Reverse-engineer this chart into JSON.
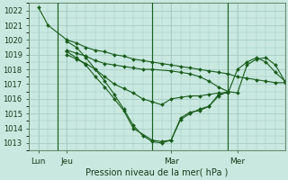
{
  "bg_color": "#c8e8e0",
  "grid_color": "#a0c8c0",
  "line_color": "#1a5c1a",
  "marker_color": "#1a5c1a",
  "xlabel": "Pression niveau de la mer( hPa )",
  "ylim": [
    1012.5,
    1022.5
  ],
  "yticks": [
    1013,
    1014,
    1015,
    1016,
    1017,
    1018,
    1019,
    1020,
    1021,
    1022
  ],
  "xtick_labels": [
    "Lun",
    "Jeu",
    "Mar",
    "Mer"
  ],
  "xtick_positions": [
    0.5,
    2.0,
    7.5,
    11.0
  ],
  "xlim": [
    0,
    13.5
  ],
  "vlines_x": [
    1.5,
    6.5,
    10.5
  ],
  "series": [
    {
      "x": [
        0.5,
        1.0,
        2.0,
        2.5,
        3.0,
        3.5,
        4.0,
        4.5,
        5.0,
        5.5,
        6.0,
        6.5,
        7.0,
        7.5,
        8.0,
        8.5,
        9.0,
        9.5,
        10.0,
        10.5,
        11.0,
        11.5,
        12.0,
        12.5,
        13.0,
        13.5
      ],
      "y": [
        1022.2,
        1021.0,
        1020.0,
        1019.8,
        1019.5,
        1019.3,
        1019.2,
        1019.0,
        1018.9,
        1018.7,
        1018.6,
        1018.5,
        1018.4,
        1018.3,
        1018.2,
        1018.1,
        1018.0,
        1017.9,
        1017.8,
        1017.7,
        1017.5,
        1017.4,
        1017.3,
        1017.2,
        1017.1,
        1017.1
      ]
    },
    {
      "x": [
        2.0,
        2.5,
        3.0,
        3.5,
        4.0,
        4.5,
        5.0,
        5.5,
        6.0,
        6.5,
        7.5,
        8.0,
        8.5,
        9.0,
        9.5,
        10.0,
        10.5,
        11.0,
        11.5,
        12.0,
        12.5,
        13.0,
        13.5
      ],
      "y": [
        1019.3,
        1019.1,
        1018.9,
        1018.6,
        1018.4,
        1018.3,
        1018.2,
        1018.1,
        1018.0,
        1018.0,
        1017.9,
        1017.8,
        1017.7,
        1017.5,
        1017.2,
        1016.8,
        1016.5,
        1016.4,
        1018.3,
        1018.7,
        1018.8,
        1018.3,
        1017.2
      ]
    },
    {
      "x": [
        2.0,
        2.5,
        3.0,
        3.5,
        4.0,
        4.5,
        5.0,
        5.5,
        6.0,
        6.5,
        7.0,
        7.5,
        8.0,
        8.5,
        9.0,
        9.5,
        10.0,
        10.5,
        11.0,
        11.5,
        12.0,
        12.5,
        13.0,
        13.5
      ],
      "y": [
        1019.0,
        1018.7,
        1018.4,
        1018.0,
        1017.5,
        1017.0,
        1016.7,
        1016.4,
        1016.0,
        1015.8,
        1015.6,
        1016.0,
        1016.1,
        1016.2,
        1016.2,
        1016.3,
        1016.4,
        1016.4,
        1018.0,
        1018.5,
        1018.8,
        1018.5,
        1017.8,
        1017.2
      ]
    },
    {
      "x": [
        2.0,
        2.5,
        3.0,
        3.5,
        4.0,
        4.5,
        5.0,
        5.5,
        6.5,
        7.0,
        7.5,
        8.0,
        8.5,
        9.0,
        9.5,
        10.0,
        10.5
      ],
      "y": [
        1019.2,
        1018.8,
        1018.3,
        1017.5,
        1016.8,
        1016.0,
        1015.2,
        1014.0,
        1013.2,
        1013.1,
        1013.2,
        1014.7,
        1015.1,
        1015.2,
        1015.5,
        1016.2,
        1016.5
      ]
    },
    {
      "x": [
        2.0,
        2.5,
        3.0,
        3.5,
        4.0,
        4.5,
        5.0,
        5.5,
        6.0,
        6.5,
        7.0,
        7.5,
        8.0,
        8.5,
        9.0,
        9.5,
        10.0,
        10.5
      ],
      "y": [
        1019.9,
        1019.5,
        1018.8,
        1018.0,
        1017.2,
        1016.3,
        1015.3,
        1014.2,
        1013.5,
        1013.1,
        1013.0,
        1013.2,
        1014.6,
        1015.0,
        1015.3,
        1015.5,
        1016.3,
        1016.5
      ]
    }
  ],
  "figsize": [
    3.2,
    2.0
  ],
  "dpi": 100
}
